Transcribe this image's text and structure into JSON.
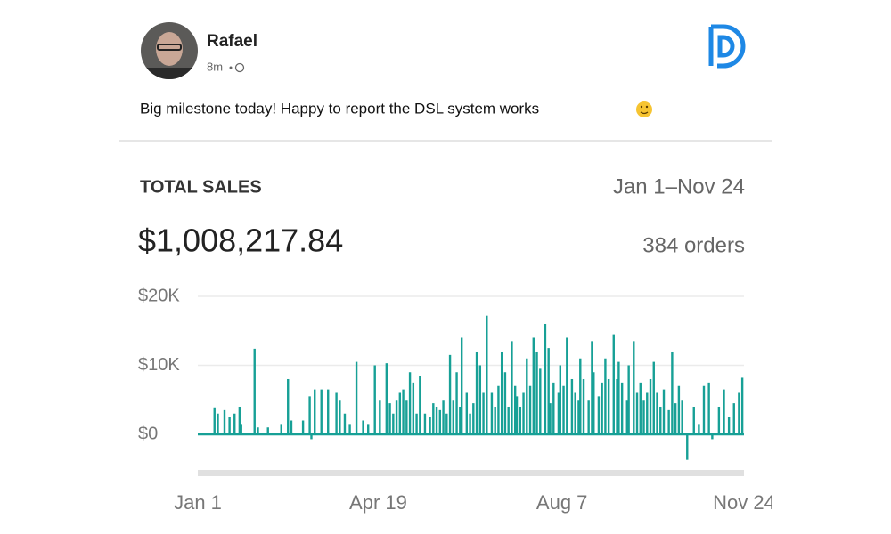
{
  "post": {
    "author": "Rafael",
    "time": "8m",
    "text": "Big milestone today! Happy to report the DSL system works"
  },
  "card": {
    "title": "TOTAL SALES",
    "date_range": "Jan 1–Nov 24",
    "total": "$1,008,217.84",
    "orders": "384 orders"
  },
  "chart_data": {
    "type": "bar",
    "color": "#17a096",
    "x": [
      11,
      13,
      17,
      20,
      23,
      26,
      27,
      35,
      37,
      43,
      51,
      55,
      57,
      64,
      68,
      69,
      71,
      75,
      79,
      84,
      86,
      89,
      92,
      96,
      100,
      103,
      107,
      110,
      114,
      116,
      118,
      120,
      122,
      124,
      126,
      128,
      130,
      132,
      134,
      137,
      140,
      142,
      144,
      146,
      148,
      150,
      152,
      154,
      156,
      158,
      159,
      162,
      164,
      166,
      168,
      170,
      172,
      174,
      177,
      179,
      181,
      183,
      185,
      187,
      189,
      191,
      192,
      194,
      196,
      198,
      200,
      202,
      204,
      206,
      209,
      211,
      212,
      214,
      217,
      218,
      220,
      222,
      225,
      227,
      229,
      230,
      232,
      235,
      237,
      238,
      241,
      243,
      245,
      247,
      250,
      252,
      253,
      255,
      258,
      259,
      262,
      264,
      266,
      268,
      270,
      272,
      274,
      276,
      278,
      280,
      283,
      285,
      287,
      289,
      291,
      294,
      298,
      301,
      304,
      307,
      309,
      313,
      316,
      319,
      322,
      325,
      327
    ],
    "values": [
      3900,
      3000,
      3500,
      2500,
      3000,
      4000,
      1500,
      12400,
      1000,
      1000,
      1500,
      8000,
      2000,
      2000,
      5500,
      -700,
      6500,
      6500,
      6500,
      6000,
      5000,
      3000,
      1500,
      10500,
      2000,
      1500,
      10000,
      5000,
      10300,
      4500,
      3000,
      5000,
      6000,
      6500,
      5000,
      9000,
      7500,
      3000,
      8500,
      3000,
      2500,
      4500,
      4000,
      3500,
      5000,
      3000,
      11500,
      5000,
      9000,
      4000,
      14000,
      6000,
      3000,
      4500,
      12000,
      10000,
      6000,
      17200,
      6000,
      4000,
      7000,
      12000,
      9000,
      4000,
      13500,
      7000,
      5500,
      4000,
      6000,
      11000,
      7000,
      14000,
      12000,
      9500,
      16000,
      12500,
      4500,
      7500,
      6000,
      10000,
      7000,
      14000,
      8000,
      6000,
      5000,
      11000,
      8000,
      5000,
      13500,
      9000,
      5500,
      7500,
      11000,
      8000,
      14500,
      8000,
      10500,
      7500,
      5000,
      10000,
      13500,
      6000,
      7500,
      5000,
      6000,
      8000,
      10500,
      6000,
      4000,
      6500,
      3500,
      12000,
      4500,
      7000,
      5000,
      -3700,
      4000,
      1500,
      7000,
      7500,
      -700,
      4000,
      6500,
      2500,
      4500,
      6000,
      8200
    ],
    "xlim": [
      1,
      328
    ],
    "xticks": [
      {
        "value": 1,
        "label": "Jan 1"
      },
      {
        "value": 109,
        "label": "Apr 19"
      },
      {
        "value": 219,
        "label": "Aug 7"
      },
      {
        "value": 328,
        "label": "Nov 24"
      }
    ],
    "ylim": [
      -4000,
      20500
    ],
    "yticks": [
      {
        "value": 0,
        "label": "$0"
      },
      {
        "value": 10000,
        "label": "$10K"
      },
      {
        "value": 20000,
        "label": "$20K"
      }
    ],
    "grid": true
  }
}
